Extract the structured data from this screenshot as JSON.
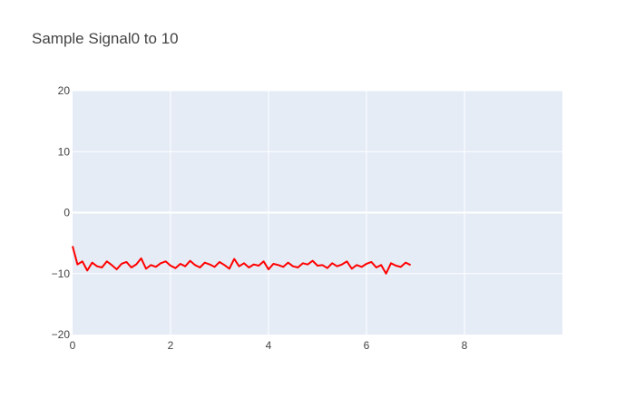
{
  "chart_data": {
    "type": "line",
    "title": "Sample Signal0 to 10",
    "xlabel": "",
    "ylabel": "",
    "xlim": [
      0,
      10
    ],
    "ylim": [
      -20,
      20
    ],
    "x_ticks": [
      0,
      2,
      4,
      6,
      8
    ],
    "x_tick_labels": [
      "0",
      "2",
      "4",
      "6",
      "8"
    ],
    "y_ticks": [
      -20,
      -10,
      0,
      10,
      20
    ],
    "y_tick_labels": [
      "−20",
      "−10",
      "0",
      "10",
      "20"
    ],
    "grid": true,
    "series": [
      {
        "color": "#ff0000",
        "x_start": 0,
        "x_step": 0.1,
        "y": [
          -5.5,
          -8.5,
          -8.0,
          -9.5,
          -8.2,
          -8.8,
          -9.0,
          -8.0,
          -8.6,
          -9.3,
          -8.4,
          -8.1,
          -9.0,
          -8.5,
          -7.5,
          -9.2,
          -8.6,
          -8.9,
          -8.3,
          -8.0,
          -8.7,
          -9.1,
          -8.4,
          -8.8,
          -7.9,
          -8.6,
          -9.0,
          -8.2,
          -8.5,
          -8.9,
          -8.1,
          -8.6,
          -9.2,
          -7.6,
          -8.8,
          -8.3,
          -9.0,
          -8.5,
          -8.7,
          -8.0,
          -9.3,
          -8.4,
          -8.6,
          -8.9,
          -8.2,
          -8.8,
          -9.0,
          -8.3,
          -8.5,
          -7.9,
          -8.7,
          -8.6,
          -9.1,
          -8.3,
          -8.8,
          -8.5,
          -8.0,
          -9.2,
          -8.6,
          -8.9,
          -8.4,
          -8.1,
          -9.0,
          -8.6,
          -10.0,
          -8.3,
          -8.7,
          -8.9,
          -8.2,
          -8.6
        ],
        "line_width": 2
      }
    ]
  }
}
